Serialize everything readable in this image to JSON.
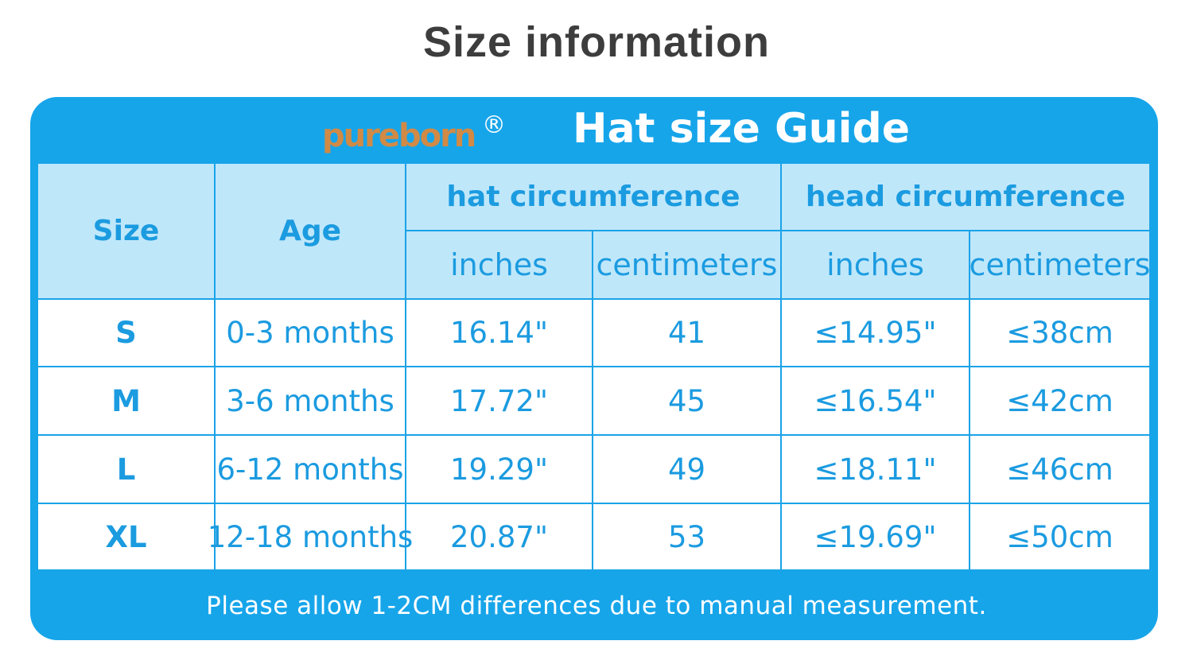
{
  "title": "Size information",
  "brand": {
    "name": "pureborn",
    "mark": "®"
  },
  "guide_title": "Hat size Guide",
  "table": {
    "headers": [
      "Size",
      "Age",
      "hat circumference",
      "head circumference"
    ],
    "subheaders": [
      "inches",
      "centimeters",
      "inches",
      "centimeters"
    ],
    "rows": [
      [
        "S",
        "0-3 months",
        "16.14\"",
        "41",
        "≤14.95\"",
        "≤38cm"
      ],
      [
        "M",
        "3-6 months",
        "17.72\"",
        "45",
        "≤16.54\"",
        "≤42cm"
      ],
      [
        "L",
        "6-12 months",
        "19.29\"",
        "49",
        "≤18.11\"",
        "≤46cm"
      ],
      [
        "XL",
        "12-18 months",
        "20.87\"",
        "53",
        "≤19.69\"",
        "≤50cm"
      ]
    ]
  },
  "note": "Please allow 1-2CM differences due to manual measurement."
}
